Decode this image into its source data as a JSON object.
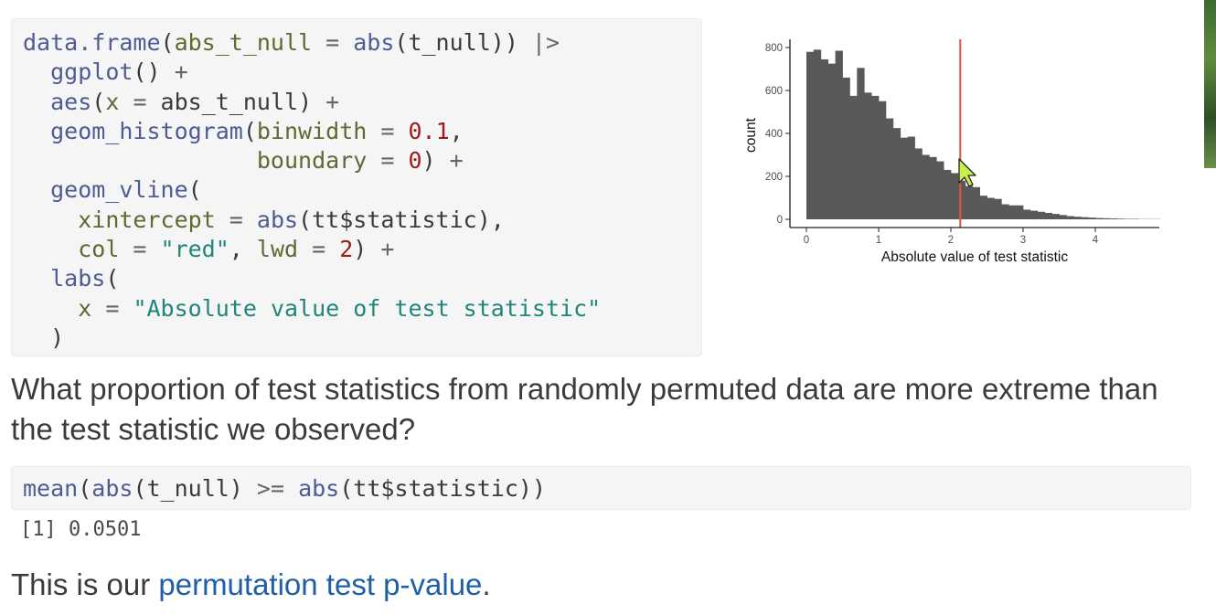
{
  "code_block_1": {
    "line1": {
      "fn1": "data.frame",
      "p1": "(",
      "arg": "abs_t_null",
      "eq": " = ",
      "fn2": "abs",
      "p2": "(t_null)) ",
      "pipe": "|>"
    },
    "line2": {
      "fn": "ggplot",
      "p": "() ",
      "plus": "+"
    },
    "line3": {
      "fn": "aes",
      "p1": "(",
      "arg": "x",
      "eq": " = ",
      "val": "abs_t_null",
      "p2": ") ",
      "plus": "+"
    },
    "line4": {
      "fn": "geom_histogram",
      "p1": "(",
      "arg": "binwidth",
      "eq": " = ",
      "num": "0.1",
      "comma": ","
    },
    "line5": {
      "arg": "boundary",
      "eq": " = ",
      "num": "0",
      "p": ") ",
      "plus": "+"
    },
    "line6": {
      "fn": "geom_vline",
      "p": "("
    },
    "line7": {
      "arg": "xintercept",
      "eq": " = ",
      "fn": "abs",
      "p": "(tt$statistic),"
    },
    "line8": {
      "arg1": "col",
      "eq1": " = ",
      "str": "\"red\"",
      "comma": ", ",
      "arg2": "lwd",
      "eq2": " = ",
      "num": "2",
      "p": ") ",
      "plus": "+"
    },
    "line9": {
      "fn": "labs",
      "p": "("
    },
    "line10": {
      "arg": "x",
      "eq": " = ",
      "str": "\"Absolute value of test statistic\""
    },
    "line11": {
      "p": ")"
    }
  },
  "chart_data": {
    "type": "bar",
    "xlabel": "Absolute value of test statistic",
    "ylabel": "count",
    "xlim": [
      0,
      4.9
    ],
    "ylim": [
      0,
      820
    ],
    "x_ticks": [
      "0",
      "1",
      "2",
      "3",
      "4"
    ],
    "y_ticks": [
      "0",
      "200",
      "400",
      "600",
      "800"
    ],
    "binwidth": 0.1,
    "boundary": 0,
    "values": [
      780,
      790,
      745,
      725,
      785,
      660,
      575,
      705,
      590,
      575,
      550,
      470,
      425,
      380,
      385,
      330,
      300,
      290,
      270,
      230,
      215,
      180,
      155,
      150,
      110,
      100,
      95,
      70,
      65,
      65,
      45,
      40,
      35,
      30,
      25,
      20,
      15,
      12,
      10,
      8,
      6,
      5,
      4,
      3,
      2,
      2,
      1,
      1,
      1
    ],
    "vline": {
      "x": 2.13,
      "color": "#e5533c"
    },
    "bar_color": "#595959"
  },
  "question": "What proportion of test statistics from randomly permuted data are more extreme than the test statistic we observed?",
  "code_block_2": {
    "fn1": "mean",
    "p1": "(",
    "fn2": "abs",
    "p2": "(t_null) ",
    "op": ">=",
    "sp": " ",
    "fn3": "abs",
    "p3": "(tt$statistic))"
  },
  "output": "[1] 0.0501",
  "closing": {
    "before": "This is our ",
    "link": "permutation test p-value",
    "after": "."
  }
}
